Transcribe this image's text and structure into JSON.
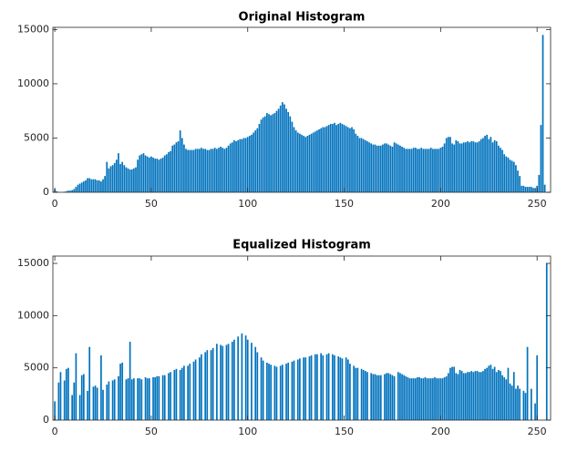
{
  "chart_data": [
    {
      "type": "bar",
      "title": "Original Histogram",
      "color": "#0072bd",
      "xlim": [
        -1,
        257
      ],
      "ylim": [
        0,
        15200
      ],
      "xticks": [
        0,
        50,
        100,
        150,
        200,
        250
      ],
      "yticks": [
        0,
        5000,
        10000,
        15000
      ],
      "x": [
        0,
        1,
        2,
        3,
        4,
        5,
        6,
        7,
        8,
        9,
        10,
        11,
        12,
        13,
        14,
        15,
        16,
        17,
        18,
        19,
        20,
        21,
        22,
        23,
        24,
        25,
        26,
        27,
        28,
        29,
        30,
        31,
        32,
        33,
        34,
        35,
        36,
        37,
        38,
        39,
        40,
        41,
        42,
        43,
        44,
        45,
        46,
        47,
        48,
        49,
        50,
        51,
        52,
        53,
        54,
        55,
        56,
        57,
        58,
        59,
        60,
        61,
        62,
        63,
        64,
        65,
        66,
        67,
        68,
        69,
        70,
        71,
        72,
        73,
        74,
        75,
        76,
        77,
        78,
        79,
        80,
        81,
        82,
        83,
        84,
        85,
        86,
        87,
        88,
        89,
        90,
        91,
        92,
        93,
        94,
        95,
        96,
        97,
        98,
        99,
        100,
        101,
        102,
        103,
        104,
        105,
        106,
        107,
        108,
        109,
        110,
        111,
        112,
        113,
        114,
        115,
        116,
        117,
        118,
        119,
        120,
        121,
        122,
        123,
        124,
        125,
        126,
        127,
        128,
        129,
        130,
        131,
        132,
        133,
        134,
        135,
        136,
        137,
        138,
        139,
        140,
        141,
        142,
        143,
        144,
        145,
        146,
        147,
        148,
        149,
        150,
        151,
        152,
        153,
        154,
        155,
        156,
        157,
        158,
        159,
        160,
        161,
        162,
        163,
        164,
        165,
        166,
        167,
        168,
        169,
        170,
        171,
        172,
        173,
        174,
        175,
        176,
        177,
        178,
        179,
        180,
        181,
        182,
        183,
        184,
        185,
        186,
        187,
        188,
        189,
        190,
        191,
        192,
        193,
        194,
        195,
        196,
        197,
        198,
        199,
        200,
        201,
        202,
        203,
        204,
        205,
        206,
        207,
        208,
        209,
        210,
        211,
        212,
        213,
        214,
        215,
        216,
        217,
        218,
        219,
        220,
        221,
        222,
        223,
        224,
        225,
        226,
        227,
        228,
        229,
        230,
        231,
        232,
        233,
        234,
        235,
        236,
        237,
        238,
        239,
        240,
        241,
        242,
        243,
        244,
        245,
        246,
        247,
        248,
        249,
        250,
        251,
        252,
        253,
        254,
        255
      ],
      "values": [
        300,
        100,
        0,
        0,
        0,
        50,
        100,
        150,
        150,
        200,
        300,
        500,
        700,
        800,
        900,
        1000,
        1100,
        1300,
        1300,
        1200,
        1200,
        1200,
        1100,
        1100,
        1000,
        1200,
        1500,
        2800,
        2200,
        2400,
        2500,
        2700,
        3000,
        3600,
        2600,
        2800,
        2500,
        2300,
        2200,
        2100,
        2100,
        2200,
        2300,
        3000,
        3400,
        3500,
        3600,
        3400,
        3300,
        3200,
        3300,
        3200,
        3100,
        3100,
        3000,
        3100,
        3200,
        3400,
        3500,
        3700,
        3800,
        4300,
        4400,
        4600,
        4700,
        5700,
        5000,
        4400,
        4000,
        3900,
        3900,
        3900,
        3900,
        4000,
        4000,
        4000,
        4100,
        4000,
        4000,
        3900,
        3900,
        4000,
        4000,
        4100,
        4000,
        4100,
        4200,
        4100,
        4000,
        4100,
        4300,
        4500,
        4600,
        4800,
        4700,
        4800,
        4900,
        4900,
        5000,
        5000,
        5100,
        5200,
        5300,
        5500,
        5700,
        5900,
        6300,
        6700,
        6900,
        7000,
        7300,
        7200,
        7100,
        7200,
        7300,
        7500,
        7700,
        8000,
        8300,
        8100,
        7700,
        7400,
        7000,
        6500,
        6000,
        5700,
        5500,
        5400,
        5300,
        5200,
        5100,
        5200,
        5300,
        5400,
        5500,
        5600,
        5700,
        5800,
        5900,
        6000,
        6000,
        6100,
        6200,
        6300,
        6300,
        6400,
        6200,
        6300,
        6400,
        6300,
        6200,
        6100,
        6000,
        5900,
        6000,
        5800,
        5400,
        5200,
        5000,
        5000,
        4900,
        4800,
        4700,
        4600,
        4500,
        4400,
        4400,
        4300,
        4300,
        4300,
        4400,
        4500,
        4500,
        4400,
        4300,
        4200,
        4600,
        4500,
        4400,
        4300,
        4200,
        4100,
        4000,
        4000,
        4000,
        4000,
        4100,
        4100,
        4000,
        4000,
        4100,
        4000,
        4000,
        4000,
        4000,
        4100,
        4000,
        4000,
        4000,
        4000,
        4100,
        4200,
        4500,
        5000,
        5100,
        5100,
        4500,
        4400,
        4800,
        4700,
        4500,
        4500,
        4600,
        4600,
        4700,
        4600,
        4700,
        4700,
        4600,
        4600,
        4700,
        4900,
        5000,
        5200,
        5300,
        4900,
        5100,
        4600,
        4800,
        4700,
        4300,
        4100,
        3900,
        3500,
        3300,
        3200,
        3000,
        2900,
        2800,
        2500,
        2000,
        1500,
        600,
        600,
        500,
        500,
        500,
        500,
        400,
        400,
        600,
        1600,
        6200,
        14500,
        700,
        0
      ]
    },
    {
      "type": "bar",
      "title": "Equalized Histogram",
      "color": "#0072bd",
      "xlim": [
        -1,
        257
      ],
      "ylim": [
        0,
        15700
      ],
      "xticks": [
        0,
        50,
        100,
        150,
        200,
        250
      ],
      "yticks": [
        0,
        5000,
        10000,
        15000
      ],
      "x": [
        0,
        1,
        2,
        3,
        4,
        5,
        6,
        7,
        8,
        9,
        10,
        11,
        12,
        13,
        14,
        15,
        16,
        17,
        18,
        19,
        20,
        21,
        22,
        23,
        24,
        25,
        26,
        27,
        28,
        29,
        30,
        31,
        32,
        33,
        34,
        35,
        36,
        37,
        38,
        39,
        40,
        41,
        42,
        43,
        44,
        45,
        46,
        47,
        48,
        49,
        50,
        51,
        52,
        53,
        54,
        55,
        56,
        57,
        58,
        59,
        60,
        61,
        62,
        63,
        64,
        65,
        66,
        67,
        68,
        69,
        70,
        71,
        72,
        73,
        74,
        75,
        76,
        77,
        78,
        79,
        80,
        81,
        82,
        83,
        84,
        85,
        86,
        87,
        88,
        89,
        90,
        91,
        92,
        93,
        94,
        95,
        96,
        97,
        98,
        99,
        100,
        101,
        102,
        103,
        104,
        105,
        106,
        107,
        108,
        109,
        110,
        111,
        112,
        113,
        114,
        115,
        116,
        117,
        118,
        119,
        120,
        121,
        122,
        123,
        124,
        125,
        126,
        127,
        128,
        129,
        130,
        131,
        132,
        133,
        134,
        135,
        136,
        137,
        138,
        139,
        140,
        141,
        142,
        143,
        144,
        145,
        146,
        147,
        148,
        149,
        150,
        151,
        152,
        153,
        154,
        155,
        156,
        157,
        158,
        159,
        160,
        161,
        162,
        163,
        164,
        165,
        166,
        167,
        168,
        169,
        170,
        171,
        172,
        173,
        174,
        175,
        176,
        177,
        178,
        179,
        180,
        181,
        182,
        183,
        184,
        185,
        186,
        187,
        188,
        189,
        190,
        191,
        192,
        193,
        194,
        195,
        196,
        197,
        198,
        199,
        200,
        201,
        202,
        203,
        204,
        205,
        206,
        207,
        208,
        209,
        210,
        211,
        212,
        213,
        214,
        215,
        216,
        217,
        218,
        219,
        220,
        221,
        222,
        223,
        224,
        225,
        226,
        227,
        228,
        229,
        230,
        231,
        232,
        233,
        234,
        235,
        236,
        237,
        238,
        239,
        240,
        241,
        242,
        243,
        244,
        245,
        246,
        247,
        248,
        249,
        250,
        251,
        252,
        253,
        254,
        255
      ],
      "values": [
        1800,
        0,
        3600,
        4600,
        0,
        3800,
        4900,
        5000,
        0,
        2400,
        3600,
        6400,
        0,
        2400,
        4300,
        4400,
        0,
        2800,
        7000,
        0,
        3200,
        3300,
        3100,
        0,
        6200,
        2900,
        0,
        3400,
        3700,
        0,
        3800,
        3900,
        0,
        4200,
        5400,
        5500,
        0,
        3900,
        4000,
        7500,
        3900,
        4000,
        0,
        4000,
        4000,
        3900,
        0,
        4100,
        4000,
        4000,
        0,
        4100,
        4100,
        4200,
        4200,
        0,
        4300,
        4300,
        0,
        4500,
        4600,
        0,
        4800,
        4900,
        0,
        4800,
        5000,
        5200,
        0,
        5200,
        5400,
        0,
        5600,
        5800,
        0,
        6000,
        6300,
        0,
        6500,
        6700,
        0,
        6700,
        6900,
        0,
        7300,
        0,
        7200,
        7100,
        0,
        7200,
        7300,
        0,
        7500,
        7700,
        0,
        8000,
        0,
        8300,
        0,
        8100,
        7700,
        0,
        7400,
        0,
        7000,
        6500,
        0,
        6000,
        5700,
        0,
        5500,
        5400,
        5300,
        0,
        5200,
        5100,
        0,
        5200,
        5300,
        0,
        5400,
        5500,
        0,
        5600,
        5700,
        0,
        5800,
        5900,
        0,
        6000,
        6000,
        0,
        6100,
        6200,
        0,
        6300,
        6300,
        0,
        6400,
        6200,
        0,
        6300,
        6400,
        0,
        6300,
        6200,
        0,
        6100,
        6000,
        5900,
        0,
        6000,
        5800,
        5400,
        0,
        5200,
        5000,
        5000,
        0,
        4900,
        4800,
        4700,
        4600,
        0,
        4500,
        4400,
        4400,
        4300,
        4300,
        4300,
        0,
        4400,
        4500,
        4500,
        4400,
        4300,
        4200,
        0,
        4600,
        4500,
        4400,
        4300,
        4200,
        4100,
        4000,
        4000,
        4000,
        4000,
        4100,
        4100,
        4000,
        4000,
        4100,
        4000,
        4000,
        4000,
        4000,
        4100,
        4000,
        4000,
        4000,
        4000,
        4100,
        4200,
        4500,
        5000,
        5100,
        5100,
        4500,
        4400,
        4800,
        4700,
        4500,
        4500,
        4600,
        4600,
        4700,
        4600,
        4700,
        4700,
        4600,
        4600,
        4700,
        4900,
        5000,
        5200,
        5300,
        4900,
        5100,
        4600,
        4800,
        4700,
        4300,
        4100,
        3900,
        5000,
        3500,
        3300,
        4600,
        3000,
        3300,
        3000,
        0,
        2800,
        2600,
        7000,
        0,
        3000,
        0,
        1600,
        6200,
        0,
        0,
        0,
        0,
        15000
      ]
    }
  ]
}
